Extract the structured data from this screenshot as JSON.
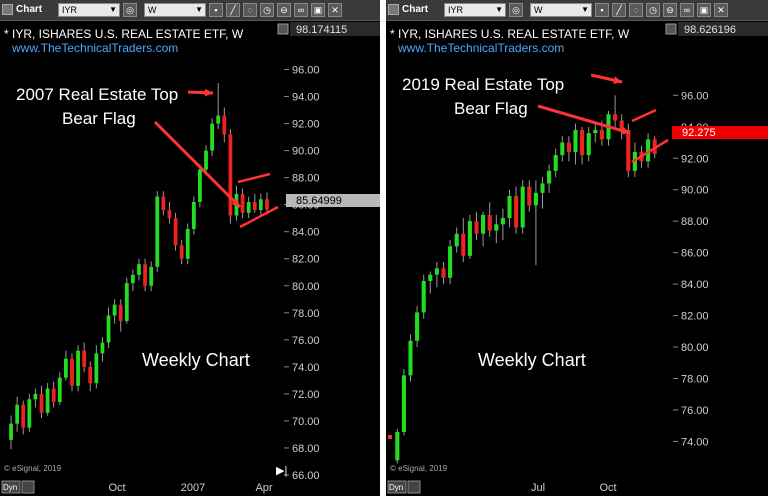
{
  "charts": [
    {
      "toolbar": {
        "chart_label": "Chart",
        "symbol": "IYR",
        "interval": "W"
      },
      "header": {
        "title": "* IYR, ISHARES U.S. REAL ESTATE ETF, W",
        "website": "www.TheTechnicalTraders.com",
        "top_price": "98.174115"
      },
      "last_price": "85.64999",
      "last_price_color": "#b8b8b8",
      "footer": {
        "copyright": "© eSignal, 2019",
        "button": "Dyn"
      },
      "colors": {
        "up": "#22dd22",
        "down": "#ee2222",
        "annotation": "#ff3333"
      }
    },
    {
      "toolbar": {
        "chart_label": "Chart",
        "symbol": "IYR",
        "interval": "W"
      },
      "header": {
        "title": "* IYR, ISHARES U.S. REAL ESTATE ETF, W",
        "website": "www.TheTechnicalTraders.com",
        "top_price": "98.626196"
      },
      "last_price": "92.275",
      "last_price_color": "#ee0000",
      "footer": {
        "copyright": "© eSignal, 2019",
        "button": "Dyn"
      },
      "colors": {
        "up": "#22dd22",
        "down": "#ee2222",
        "annotation": "#ff3333"
      }
    }
  ],
  "chart_data": [
    {
      "type": "candlestick",
      "xaxis": {
        "labels": [
          "Oct",
          "2007",
          "Apr"
        ]
      },
      "yaxis": {
        "ylim": [
          66,
          97
        ],
        "ticks": [
          66,
          68,
          70,
          72,
          74,
          76,
          78,
          80,
          82,
          84,
          86,
          88,
          90,
          92,
          94,
          96
        ]
      },
      "annotations": {
        "title_line1": "2007 Real Estate Top",
        "title_line2": "Bear Flag",
        "caption": "Weekly Chart"
      },
      "candles": [
        {
          "o": 68.6,
          "h": 70.4,
          "l": 67.9,
          "c": 69.8
        },
        {
          "o": 69.8,
          "h": 71.8,
          "l": 69.2,
          "c": 71.2
        },
        {
          "o": 71.2,
          "h": 71.5,
          "l": 69.0,
          "c": 69.5
        },
        {
          "o": 69.5,
          "h": 72.0,
          "l": 69.2,
          "c": 71.6
        },
        {
          "o": 71.6,
          "h": 72.4,
          "l": 71.0,
          "c": 72.0
        },
        {
          "o": 72.0,
          "h": 72.6,
          "l": 70.2,
          "c": 70.6
        },
        {
          "o": 70.6,
          "h": 72.8,
          "l": 70.4,
          "c": 72.4
        },
        {
          "o": 72.4,
          "h": 72.9,
          "l": 71.0,
          "c": 71.4
        },
        {
          "o": 71.4,
          "h": 73.6,
          "l": 71.2,
          "c": 73.2
        },
        {
          "o": 73.2,
          "h": 75.2,
          "l": 73.0,
          "c": 74.6
        },
        {
          "o": 74.6,
          "h": 75.0,
          "l": 72.2,
          "c": 72.6
        },
        {
          "o": 72.6,
          "h": 75.6,
          "l": 72.2,
          "c": 75.2
        },
        {
          "o": 75.2,
          "h": 75.8,
          "l": 73.6,
          "c": 74.0
        },
        {
          "o": 74.0,
          "h": 74.4,
          "l": 72.2,
          "c": 72.8
        },
        {
          "o": 72.8,
          "h": 75.6,
          "l": 72.4,
          "c": 75.0
        },
        {
          "o": 75.0,
          "h": 76.2,
          "l": 74.4,
          "c": 75.8
        },
        {
          "o": 75.8,
          "h": 78.4,
          "l": 75.4,
          "c": 77.8
        },
        {
          "o": 77.8,
          "h": 79.0,
          "l": 77.2,
          "c": 78.6
        },
        {
          "o": 78.6,
          "h": 79.0,
          "l": 76.6,
          "c": 77.4
        },
        {
          "o": 77.4,
          "h": 80.6,
          "l": 77.2,
          "c": 80.2
        },
        {
          "o": 80.2,
          "h": 81.2,
          "l": 79.6,
          "c": 80.8
        },
        {
          "o": 80.8,
          "h": 82.0,
          "l": 80.4,
          "c": 81.6
        },
        {
          "o": 81.6,
          "h": 82.0,
          "l": 79.6,
          "c": 80.0
        },
        {
          "o": 80.0,
          "h": 81.8,
          "l": 79.6,
          "c": 81.4
        },
        {
          "o": 81.4,
          "h": 87.0,
          "l": 81.0,
          "c": 86.6
        },
        {
          "o": 86.6,
          "h": 87.0,
          "l": 85.2,
          "c": 85.6
        },
        {
          "o": 85.6,
          "h": 86.2,
          "l": 84.6,
          "c": 85.0
        },
        {
          "o": 85.0,
          "h": 85.4,
          "l": 82.6,
          "c": 83.0
        },
        {
          "o": 83.0,
          "h": 83.4,
          "l": 81.6,
          "c": 82.0
        },
        {
          "o": 82.0,
          "h": 84.6,
          "l": 81.6,
          "c": 84.2
        },
        {
          "o": 84.2,
          "h": 86.6,
          "l": 83.8,
          "c": 86.2
        },
        {
          "o": 86.2,
          "h": 89.0,
          "l": 85.8,
          "c": 88.6
        },
        {
          "o": 88.6,
          "h": 90.4,
          "l": 88.2,
          "c": 90.0
        },
        {
          "o": 90.0,
          "h": 92.4,
          "l": 89.6,
          "c": 92.0
        },
        {
          "o": 92.0,
          "h": 95.0,
          "l": 91.6,
          "c": 92.6
        },
        {
          "o": 92.6,
          "h": 93.2,
          "l": 90.6,
          "c": 91.2
        },
        {
          "o": 91.2,
          "h": 91.6,
          "l": 84.6,
          "c": 85.2
        },
        {
          "o": 85.2,
          "h": 87.4,
          "l": 84.8,
          "c": 86.8
        },
        {
          "o": 86.8,
          "h": 87.2,
          "l": 85.0,
          "c": 85.4
        },
        {
          "o": 85.4,
          "h": 86.6,
          "l": 85.0,
          "c": 86.2
        },
        {
          "o": 86.2,
          "h": 86.8,
          "l": 85.4,
          "c": 85.6
        },
        {
          "o": 85.6,
          "h": 86.8,
          "l": 85.2,
          "c": 86.4
        },
        {
          "o": 86.4,
          "h": 86.9,
          "l": 85.3,
          "c": 85.65
        }
      ]
    },
    {
      "type": "candlestick",
      "xaxis": {
        "labels": [
          "Jul",
          "Oct"
        ]
      },
      "yaxis": {
        "ylim": [
          72.5,
          98.5
        ],
        "ticks": [
          74,
          76,
          78,
          80,
          82,
          84,
          86,
          88,
          90,
          92,
          94,
          96
        ]
      },
      "annotations": {
        "title_line1": "2019 Real Estate Top",
        "title_line2": "Bear Flag",
        "caption": "Weekly Chart"
      },
      "candles": [
        {
          "o": 72.8,
          "h": 74.8,
          "l": 72.6,
          "c": 74.6
        },
        {
          "o": 74.6,
          "h": 78.6,
          "l": 74.4,
          "c": 78.2
        },
        {
          "o": 78.2,
          "h": 80.8,
          "l": 77.8,
          "c": 80.4
        },
        {
          "o": 80.4,
          "h": 82.6,
          "l": 80.0,
          "c": 82.2
        },
        {
          "o": 82.2,
          "h": 84.6,
          "l": 81.8,
          "c": 84.2
        },
        {
          "o": 84.2,
          "h": 84.8,
          "l": 83.4,
          "c": 84.6
        },
        {
          "o": 84.6,
          "h": 85.4,
          "l": 83.8,
          "c": 85.0
        },
        {
          "o": 85.0,
          "h": 85.4,
          "l": 84.0,
          "c": 84.4
        },
        {
          "o": 84.4,
          "h": 86.8,
          "l": 84.0,
          "c": 86.4
        },
        {
          "o": 86.4,
          "h": 87.6,
          "l": 86.0,
          "c": 87.2
        },
        {
          "o": 87.2,
          "h": 88.2,
          "l": 85.4,
          "c": 85.8
        },
        {
          "o": 85.8,
          "h": 88.4,
          "l": 85.6,
          "c": 88.0
        },
        {
          "o": 88.0,
          "h": 88.6,
          "l": 86.8,
          "c": 87.2
        },
        {
          "o": 87.2,
          "h": 88.6,
          "l": 86.4,
          "c": 88.4
        },
        {
          "o": 88.4,
          "h": 89.2,
          "l": 87.0,
          "c": 87.4
        },
        {
          "o": 87.4,
          "h": 88.4,
          "l": 86.6,
          "c": 87.8
        },
        {
          "o": 87.8,
          "h": 88.8,
          "l": 86.8,
          "c": 88.2
        },
        {
          "o": 88.2,
          "h": 90.0,
          "l": 87.6,
          "c": 89.6
        },
        {
          "o": 89.6,
          "h": 90.2,
          "l": 87.2,
          "c": 87.6
        },
        {
          "o": 87.6,
          "h": 90.6,
          "l": 87.2,
          "c": 90.2
        },
        {
          "o": 90.2,
          "h": 90.6,
          "l": 88.6,
          "c": 89.0
        },
        {
          "o": 89.0,
          "h": 90.6,
          "l": 85.2,
          "c": 89.8
        },
        {
          "o": 89.8,
          "h": 90.8,
          "l": 88.8,
          "c": 90.4
        },
        {
          "o": 90.4,
          "h": 91.6,
          "l": 89.8,
          "c": 91.2
        },
        {
          "o": 91.2,
          "h": 92.6,
          "l": 90.8,
          "c": 92.2
        },
        {
          "o": 92.2,
          "h": 93.4,
          "l": 91.8,
          "c": 93.0
        },
        {
          "o": 93.0,
          "h": 93.4,
          "l": 91.8,
          "c": 92.4
        },
        {
          "o": 92.4,
          "h": 94.2,
          "l": 91.6,
          "c": 93.8
        },
        {
          "o": 93.8,
          "h": 94.0,
          "l": 91.6,
          "c": 92.2
        },
        {
          "o": 92.2,
          "h": 94.0,
          "l": 91.8,
          "c": 93.6
        },
        {
          "o": 93.6,
          "h": 94.2,
          "l": 93.0,
          "c": 93.8
        },
        {
          "o": 93.8,
          "h": 94.4,
          "l": 92.8,
          "c": 93.2
        },
        {
          "o": 93.2,
          "h": 95.0,
          "l": 92.8,
          "c": 94.8
        },
        {
          "o": 94.8,
          "h": 96.0,
          "l": 94.0,
          "c": 94.4
        },
        {
          "o": 94.4,
          "h": 94.8,
          "l": 93.2,
          "c": 93.8
        },
        {
          "o": 93.8,
          "h": 94.2,
          "l": 90.8,
          "c": 91.2
        },
        {
          "o": 91.2,
          "h": 93.0,
          "l": 90.8,
          "c": 92.4
        },
        {
          "o": 92.4,
          "h": 92.8,
          "l": 91.4,
          "c": 91.8
        },
        {
          "o": 91.8,
          "h": 93.6,
          "l": 91.4,
          "c": 93.2
        },
        {
          "o": 93.2,
          "h": 93.4,
          "l": 92.0,
          "c": 92.28
        }
      ]
    }
  ]
}
